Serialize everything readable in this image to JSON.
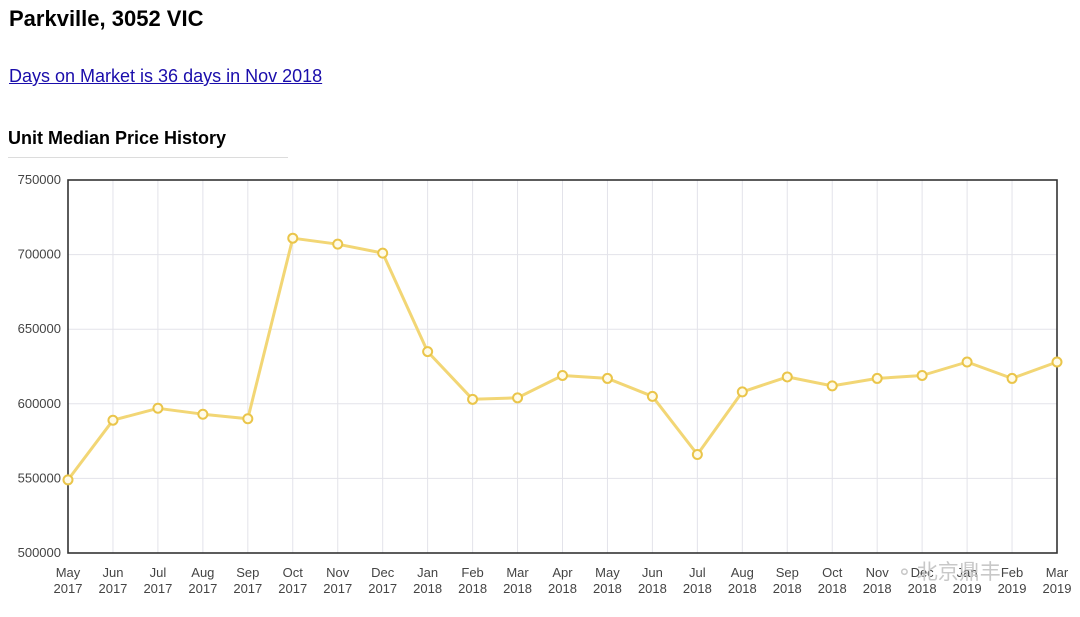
{
  "page": {
    "title": "Parkville, 3052 VIC",
    "market_link": "Days on Market is 36 days in Nov 2018",
    "section_title": "Unit Median Price History"
  },
  "watermark": {
    "icon": "wechat-icon",
    "text": "北京鼎丰"
  },
  "chart_data": {
    "type": "line",
    "title": "Unit Median Price History",
    "xlabel": "",
    "ylabel": "",
    "ylim": [
      500000,
      750000
    ],
    "y_ticks": [
      500000,
      550000,
      600000,
      650000,
      700000,
      750000
    ],
    "grid": true,
    "line_color": "#f2d675",
    "point_color": "#eac54a",
    "x": [
      {
        "month": "May",
        "year": "2017"
      },
      {
        "month": "Jun",
        "year": "2017"
      },
      {
        "month": "Jul",
        "year": "2017"
      },
      {
        "month": "Aug",
        "year": "2017"
      },
      {
        "month": "Sep",
        "year": "2017"
      },
      {
        "month": "Oct",
        "year": "2017"
      },
      {
        "month": "Nov",
        "year": "2017"
      },
      {
        "month": "Dec",
        "year": "2017"
      },
      {
        "month": "Jan",
        "year": "2018"
      },
      {
        "month": "Feb",
        "year": "2018"
      },
      {
        "month": "Mar",
        "year": "2018"
      },
      {
        "month": "Apr",
        "year": "2018"
      },
      {
        "month": "May",
        "year": "2018"
      },
      {
        "month": "Jun",
        "year": "2018"
      },
      {
        "month": "Jul",
        "year": "2018"
      },
      {
        "month": "Aug",
        "year": "2018"
      },
      {
        "month": "Sep",
        "year": "2018"
      },
      {
        "month": "Oct",
        "year": "2018"
      },
      {
        "month": "Nov",
        "year": "2018"
      },
      {
        "month": "Dec",
        "year": "2018"
      },
      {
        "month": "Jan",
        "year": "2019"
      },
      {
        "month": "Feb",
        "year": "2019"
      },
      {
        "month": "Mar",
        "year": "2019"
      }
    ],
    "values": [
      549000,
      589000,
      597000,
      593000,
      590000,
      711000,
      707000,
      701000,
      635000,
      603000,
      604000,
      619000,
      617000,
      605000,
      566000,
      608000,
      618000,
      612000,
      617000,
      619000,
      628000,
      617000,
      628000
    ]
  }
}
